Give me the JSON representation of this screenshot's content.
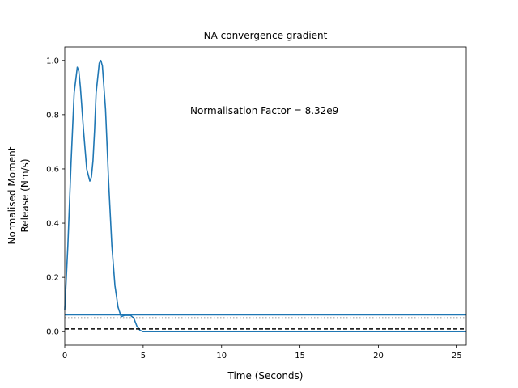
{
  "chart_data": {
    "type": "line",
    "title": "NA convergence gradient",
    "xlabel": "Time (Seconds)",
    "ylabel_lines": [
      "Normalised Moment",
      "Release (Nm/s)"
    ],
    "xlim": [
      0,
      25.6
    ],
    "ylim": [
      -0.05,
      1.05
    ],
    "xticks": [
      0,
      5,
      10,
      15,
      20,
      25
    ],
    "yticks": [
      0.0,
      0.2,
      0.4,
      0.6,
      0.8,
      1.0
    ],
    "xtick_labels": [
      "0",
      "5",
      "10",
      "15",
      "20",
      "25"
    ],
    "ytick_labels": [
      "0.0",
      "0.2",
      "0.4",
      "0.6",
      "0.8",
      "1.0"
    ],
    "grid": false,
    "annotation": "Normalisation Factor = 8.32e9",
    "series": [
      {
        "color": "#1f77b4",
        "style": "solid",
        "x": [
          0,
          0.2,
          0.4,
          0.6,
          0.8,
          0.9,
          1.0,
          1.2,
          1.4,
          1.6,
          1.7,
          1.8,
          1.9,
          2.0,
          2.2,
          2.3,
          2.4,
          2.6,
          2.8,
          3.0,
          3.2,
          3.4,
          3.6,
          3.8,
          4.0,
          4.2,
          4.4,
          4.6,
          4.8,
          5.0,
          5.5,
          6,
          8,
          10,
          15,
          20,
          25,
          25.6
        ],
        "y": [
          0.08,
          0.32,
          0.62,
          0.88,
          0.975,
          0.96,
          0.9,
          0.74,
          0.6,
          0.555,
          0.57,
          0.63,
          0.74,
          0.88,
          0.99,
          1.0,
          0.98,
          0.82,
          0.55,
          0.32,
          0.17,
          0.09,
          0.055,
          0.06,
          0.06,
          0.06,
          0.05,
          0.02,
          0.005,
          0.0,
          0.0,
          0.0,
          0.0,
          0.0,
          0.0,
          0.0,
          0.0,
          0.0
        ]
      },
      {
        "color": "#1f77b4",
        "style": "solid",
        "x": [
          0,
          25.6
        ],
        "y": [
          0.062,
          0.062
        ]
      }
    ],
    "reference_lines": [
      {
        "y": 0.05,
        "style": "dotted",
        "color": "#000000"
      },
      {
        "y": 0.01,
        "style": "dashed",
        "color": "#000000"
      }
    ]
  }
}
